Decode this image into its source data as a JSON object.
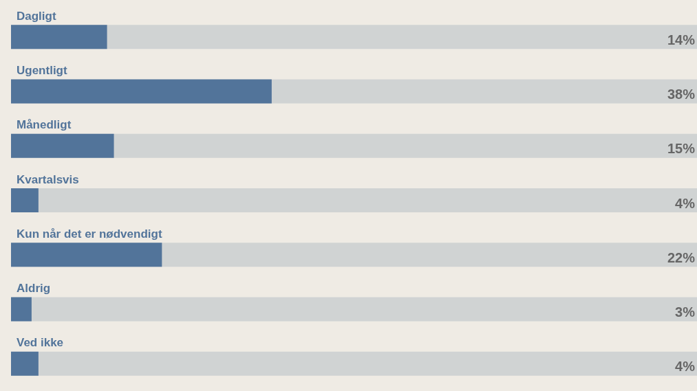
{
  "chart_data": {
    "type": "bar",
    "orientation": "horizontal",
    "categories": [
      "Dagligt",
      "Ugentligt",
      "Månedligt",
      "Kvartalsvis",
      "Kun når det er nødvendigt",
      "Aldrig",
      "Ved ikke"
    ],
    "values": [
      14,
      38,
      15,
      4,
      22,
      3,
      4
    ],
    "value_labels": [
      "14%",
      "38%",
      "15%",
      "4%",
      "22%",
      "3%",
      "4%"
    ],
    "color": "#52749a",
    "xlim": [
      0,
      100
    ],
    "tick_labels": false
  }
}
